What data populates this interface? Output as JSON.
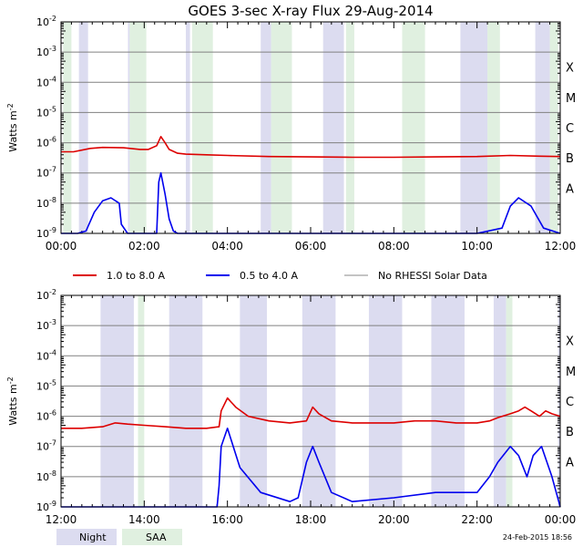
{
  "chart_data": [
    {
      "type": "line",
      "title": "GOES 3-sec X-ray Flux   29-Aug-2014",
      "ylabel": "Watts m",
      "ylabel_sup": "-2",
      "yscale": "log",
      "ylim": [
        1e-09,
        0.01
      ],
      "y_tick_exponents": [
        "-2",
        "-3",
        "-4",
        "-5",
        "-6",
        "-7",
        "-8",
        "-9"
      ],
      "flare_classes": [
        "X",
        "M",
        "C",
        "B",
        "A"
      ],
      "xlim_hours": [
        0,
        12
      ],
      "x_tick_labels": [
        "00:00",
        "02:00",
        "04:00",
        "06:00",
        "08:00",
        "10:00",
        "12:00"
      ],
      "night_intervals_hours": [
        [
          0.43,
          0.65
        ],
        [
          1.61,
          1.65
        ],
        [
          3.0,
          3.1
        ],
        [
          4.8,
          5.05
        ],
        [
          6.3,
          6.8
        ],
        [
          9.6,
          10.25
        ],
        [
          11.4,
          11.75
        ]
      ],
      "saa_intervals_hours": [
        [
          0.05,
          0.25
        ],
        [
          1.65,
          2.05
        ],
        [
          3.15,
          3.65
        ],
        [
          5.05,
          5.55
        ],
        [
          6.85,
          7.05
        ],
        [
          8.2,
          8.75
        ],
        [
          10.25,
          10.55
        ],
        [
          11.75,
          11.95
        ]
      ],
      "series": [
        {
          "name": "1.0 to 8.0 A",
          "color": "#dd0000",
          "x": [
            0.0,
            0.3,
            0.7,
            1.0,
            1.5,
            1.9,
            2.1,
            2.3,
            2.4,
            2.5,
            2.6,
            2.8,
            3.0,
            3.5,
            4.0,
            5.0,
            6.0,
            7.0,
            8.0,
            9.0,
            10.0,
            10.8,
            11.5,
            12.0
          ],
          "y": [
            5e-07,
            5e-07,
            6.5e-07,
            7e-07,
            6.8e-07,
            6e-07,
            6e-07,
            8e-07,
            1.6e-06,
            1e-06,
            6e-07,
            4.5e-07,
            4.2e-07,
            4e-07,
            3.8e-07,
            3.5e-07,
            3.4e-07,
            3.3e-07,
            3.3e-07,
            3.4e-07,
            3.5e-07,
            3.8e-07,
            3.6e-07,
            3.5e-07
          ]
        },
        {
          "name": "0.5 to 4.0 A",
          "color": "#0000ee",
          "x": [
            0.0,
            0.4,
            0.6,
            0.8,
            1.0,
            1.2,
            1.4,
            1.45,
            1.6,
            2.3,
            2.35,
            2.4,
            2.5,
            2.6,
            2.7,
            2.8,
            3.0,
            4.0,
            5.0,
            6.0,
            7.0,
            8.0,
            9.0,
            10.0,
            10.6,
            10.8,
            11.0,
            11.3,
            11.6,
            12.0
          ],
          "y": [
            1e-09,
            1e-09,
            1.2e-09,
            5e-09,
            1.2e-08,
            1.5e-08,
            1e-08,
            2e-09,
            1e-09,
            1e-09,
            5e-08,
            1e-07,
            2e-08,
            3e-09,
            1.2e-09,
            1e-09,
            1e-09,
            1e-09,
            1e-09,
            1e-09,
            1e-09,
            1e-09,
            1e-09,
            1e-09,
            1.5e-09,
            8e-09,
            1.5e-08,
            8e-09,
            1.5e-09,
            1e-09
          ]
        }
      ]
    },
    {
      "type": "line",
      "ylabel": "Watts m",
      "ylabel_sup": "-2",
      "yscale": "log",
      "ylim": [
        1e-09,
        0.01
      ],
      "y_tick_exponents": [
        "-2",
        "-3",
        "-4",
        "-5",
        "-6",
        "-7",
        "-8",
        "-9"
      ],
      "flare_classes": [
        "X",
        "M",
        "C",
        "B",
        "A"
      ],
      "xlim_hours": [
        12,
        24
      ],
      "x_tick_labels": [
        "12:00",
        "14:00",
        "16:00",
        "18:00",
        "20:00",
        "22:00",
        "00:00"
      ],
      "night_intervals_hours": [
        [
          12.95,
          13.75
        ],
        [
          14.6,
          15.4
        ],
        [
          16.3,
          16.95
        ],
        [
          17.8,
          18.6
        ],
        [
          19.4,
          20.2
        ],
        [
          20.9,
          21.7
        ],
        [
          22.4,
          22.7
        ],
        [
          23.95,
          24.0
        ]
      ],
      "saa_intervals_hours": [
        [
          13.85,
          14.0
        ],
        [
          22.7,
          22.85
        ]
      ],
      "series": [
        {
          "name": "1.0 to 8.0 A",
          "color": "#dd0000",
          "x": [
            12.0,
            12.5,
            13.0,
            13.3,
            13.6,
            14.0,
            14.5,
            15.0,
            15.5,
            15.8,
            15.85,
            16.0,
            16.2,
            16.5,
            17.0,
            17.5,
            17.9,
            18.05,
            18.2,
            18.5,
            19.0,
            19.5,
            20.0,
            20.5,
            21.0,
            21.5,
            22.0,
            22.3,
            22.5,
            22.8,
            23.0,
            23.15,
            23.3,
            23.5,
            23.65,
            23.8,
            24.0
          ],
          "y": [
            4e-07,
            4e-07,
            4.5e-07,
            6e-07,
            5.5e-07,
            5e-07,
            4.5e-07,
            4e-07,
            4e-07,
            4.5e-07,
            1.5e-06,
            4e-06,
            2e-06,
            1e-06,
            7e-07,
            6e-07,
            7e-07,
            2e-06,
            1.2e-06,
            7e-07,
            6e-07,
            6e-07,
            6e-07,
            7e-07,
            7e-07,
            6e-07,
            6e-07,
            7e-07,
            9e-07,
            1.2e-06,
            1.5e-06,
            2e-06,
            1.5e-06,
            1e-06,
            1.5e-06,
            1.2e-06,
            1e-06
          ]
        },
        {
          "name": "0.5 to 4.0 A",
          "color": "#0000ee",
          "x": [
            12.0,
            13.0,
            14.0,
            15.0,
            15.75,
            15.8,
            15.85,
            16.0,
            16.3,
            16.8,
            17.5,
            17.7,
            17.9,
            18.05,
            18.2,
            18.5,
            19.0,
            20.0,
            21.0,
            22.0,
            22.3,
            22.5,
            22.8,
            23.0,
            23.2,
            23.35,
            23.55,
            23.8,
            24.0
          ],
          "y": [
            1e-09,
            1e-09,
            1e-09,
            1e-09,
            1e-09,
            5e-09,
            1e-07,
            4e-07,
            2e-08,
            3e-09,
            1.5e-09,
            2e-09,
            3e-08,
            1e-07,
            3e-08,
            3e-09,
            1.5e-09,
            2e-09,
            3e-09,
            3e-09,
            1e-08,
            3e-08,
            1e-07,
            5e-08,
            1e-08,
            5e-08,
            1e-07,
            1e-08,
            1e-09
          ]
        }
      ]
    }
  ],
  "legend": {
    "items": [
      {
        "label": "1.0 to 8.0 A",
        "color": "#dd0000"
      },
      {
        "label": "0.5 to 4.0 A",
        "color": "#0000ee"
      },
      {
        "label": "No RHESSI Solar Data",
        "color": "#888888"
      }
    ],
    "night_label": "Night",
    "saa_label": "SAA"
  },
  "colors": {
    "night": "#dcdcf0",
    "saa": "#e0f0e0",
    "grid": "#808080"
  },
  "timestamp": "24-Feb-2015 18:56"
}
